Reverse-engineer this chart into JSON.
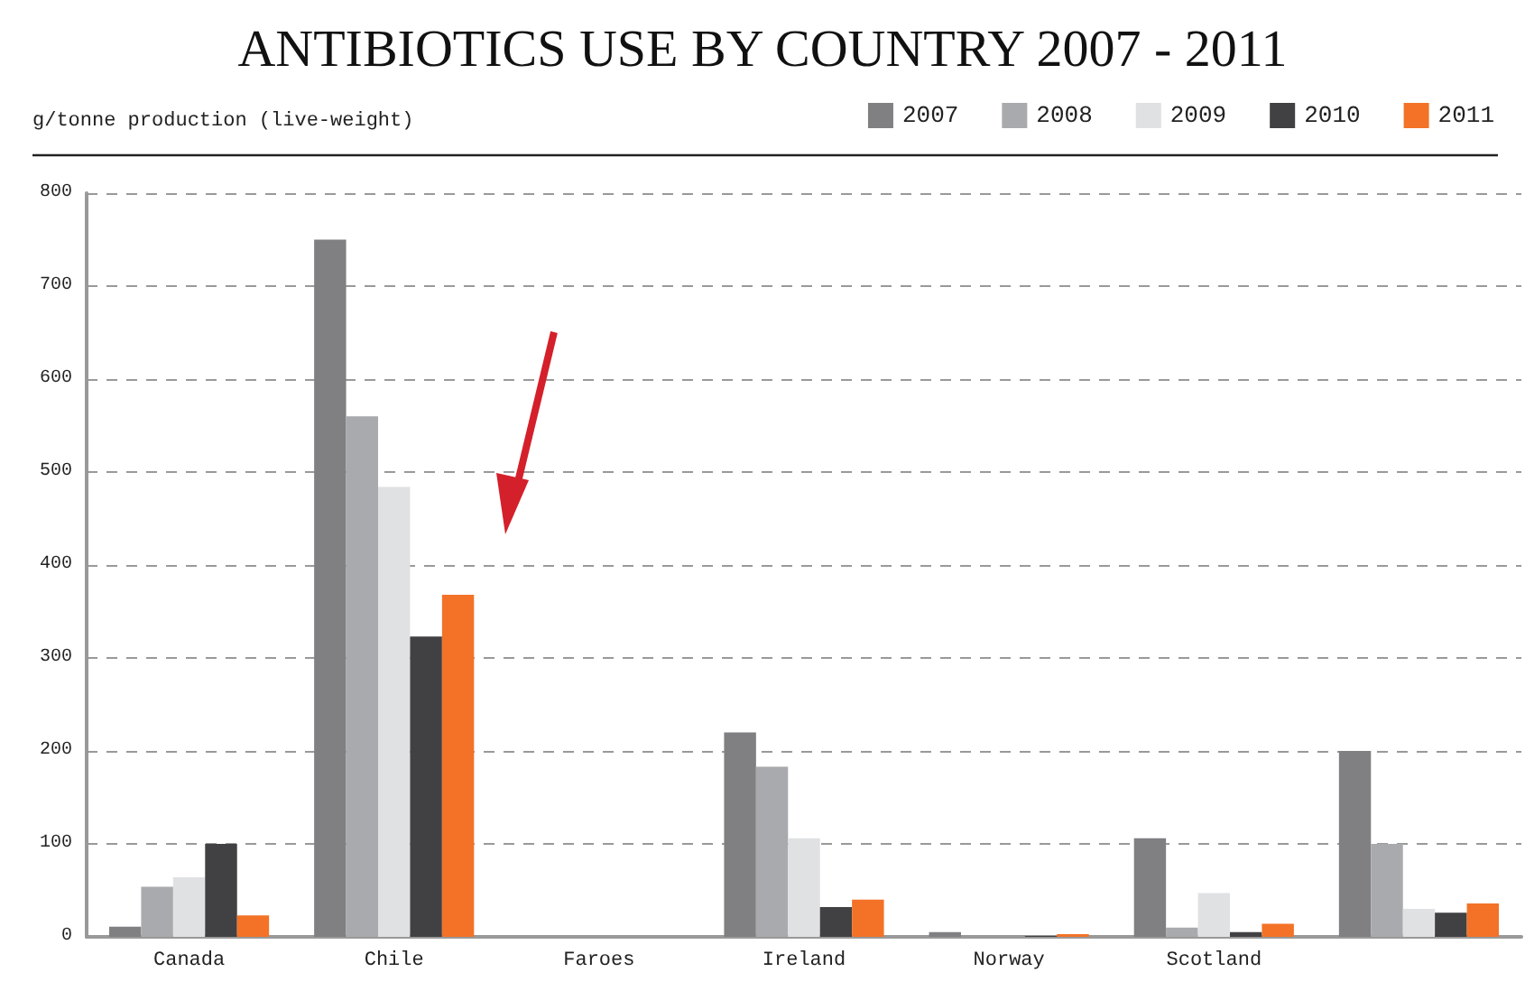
{
  "chart_data": {
    "type": "bar",
    "title": "ANTIBIOTICS USE BY COUNTRY 2007 - 2011",
    "ylabel": "g/tonne production (live-weight)",
    "categories": [
      "Canada",
      "Chile",
      "Faroes",
      "Ireland",
      "Norway",
      "Scotland",
      null
    ],
    "series": [
      {
        "name": "2007",
        "color": "#808083",
        "values": [
          11,
          750,
          0,
          220,
          5,
          106,
          200
        ]
      },
      {
        "name": "2008",
        "color": "#a9aaad",
        "values": [
          54,
          560,
          0,
          183,
          null,
          10,
          100
        ]
      },
      {
        "name": "2009",
        "color": "#e0e1e3",
        "values": [
          64,
          484,
          0,
          106,
          0,
          47,
          30
        ]
      },
      {
        "name": "2010",
        "color": "#414143",
        "values": [
          100,
          323,
          0,
          32,
          1,
          5,
          26
        ]
      },
      {
        "name": "2011",
        "color": "#f37227",
        "values": [
          23,
          368,
          0,
          40,
          3,
          14,
          36
        ]
      }
    ],
    "ylim": [
      0,
      800
    ],
    "yticks": [
      0,
      100,
      200,
      300,
      400,
      500,
      600,
      700,
      800
    ],
    "grid": "y",
    "legend": "top right"
  }
}
